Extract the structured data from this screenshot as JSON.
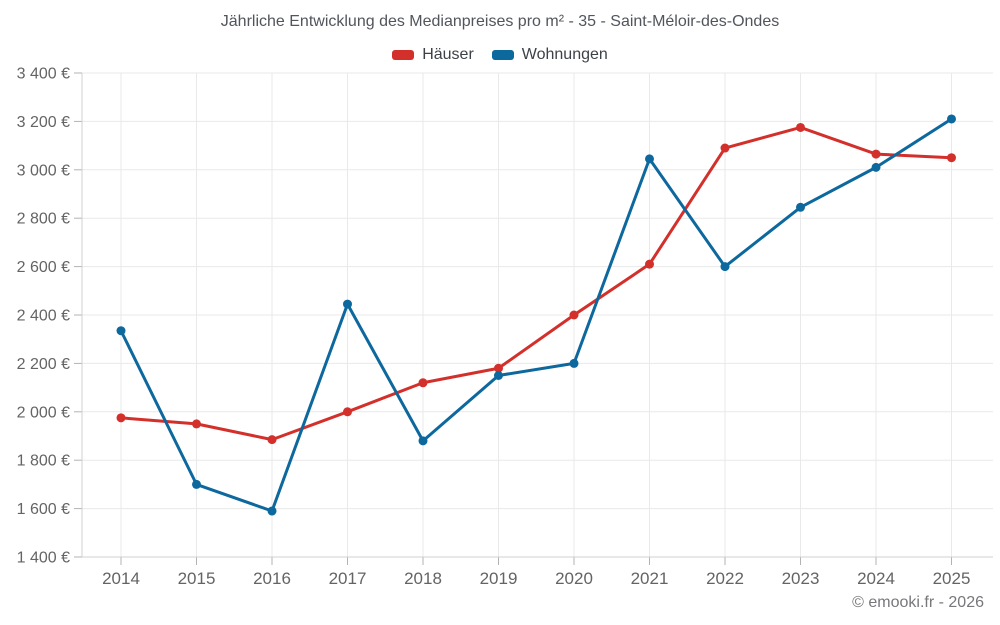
{
  "title": "Jährliche Entwicklung des Medianpreises pro m² - 35 - Saint-Méloir-des-Ondes",
  "footer": "© emooki.fr - 2026",
  "legend": [
    {
      "label": "Häuser",
      "color": "#d3302c"
    },
    {
      "label": "Wohnungen",
      "color": "#0d689e"
    }
  ],
  "chart_data": {
    "type": "line",
    "x": [
      "2014",
      "2015",
      "2016",
      "2017",
      "2018",
      "2019",
      "2020",
      "2021",
      "2022",
      "2023",
      "2024",
      "2025"
    ],
    "series": [
      {
        "name": "Häuser",
        "color": "#d3302c",
        "values": [
          1975,
          1950,
          1885,
          2000,
          2120,
          2180,
          2400,
          2610,
          3090,
          3175,
          3065,
          3050
        ]
      },
      {
        "name": "Wohnungen",
        "color": "#0d689e",
        "values": [
          2335,
          1700,
          1590,
          2445,
          1880,
          2150,
          2200,
          3045,
          2600,
          2845,
          3010,
          3210
        ]
      }
    ],
    "ylim": [
      1400,
      3400
    ],
    "ytick_step": 200,
    "ytick_labels": [
      "1 400 €",
      "1 600 €",
      "1 800 €",
      "2 000 €",
      "2 200 €",
      "2 400 €",
      "2 600 €",
      "2 800 €",
      "3 000 €",
      "3 200 €",
      "3 400 €"
    ],
    "unit": "€",
    "grid": true,
    "legend_position": "top",
    "title": "Jährliche Entwicklung des Medianpreises pro m² - 35 - Saint-Méloir-des-Ondes",
    "xlabel": "",
    "ylabel": ""
  }
}
